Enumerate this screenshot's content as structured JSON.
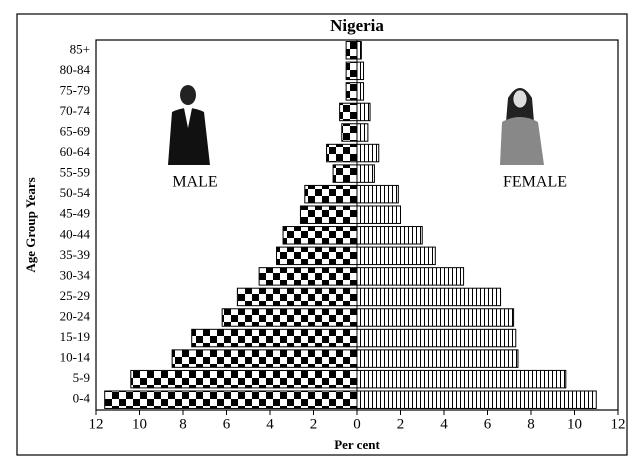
{
  "chart_data": {
    "type": "pyramid",
    "title": "Nigeria",
    "x_label": "Per cent",
    "y_label": "Age Group Years",
    "categories": [
      "0-4",
      "5-9",
      "10-14",
      "15-19",
      "20-24",
      "25-29",
      "30-34",
      "35-39",
      "40-44",
      "45-49",
      "50-54",
      "55-59",
      "60-64",
      "65-69",
      "70-74",
      "75-79",
      "80-84",
      "85+"
    ],
    "series": [
      {
        "name": "MALE",
        "color": "#000000",
        "values": [
          11.6,
          10.4,
          8.5,
          7.6,
          6.2,
          5.5,
          4.5,
          3.7,
          3.4,
          2.6,
          2.4,
          1.1,
          1.4,
          0.7,
          0.8,
          0.5,
          0.5,
          0.5
        ]
      },
      {
        "name": "FEMALE",
        "color": "#000000",
        "values": [
          11.0,
          9.6,
          7.4,
          7.3,
          7.2,
          6.6,
          4.9,
          3.6,
          3.0,
          2.0,
          1.9,
          0.8,
          1.0,
          0.5,
          0.6,
          0.3,
          0.3,
          0.2
        ]
      }
    ],
    "xlim": [
      -12,
      12
    ],
    "xticks": [
      {
        "value": -12,
        "label": "12"
      },
      {
        "value": -10,
        "label": "10"
      },
      {
        "value": -8,
        "label": "8"
      },
      {
        "value": -6,
        "label": "6"
      },
      {
        "value": -4,
        "label": "4"
      },
      {
        "value": -2,
        "label": "2"
      },
      0,
      2,
      4,
      6,
      8,
      10,
      12
    ]
  }
}
